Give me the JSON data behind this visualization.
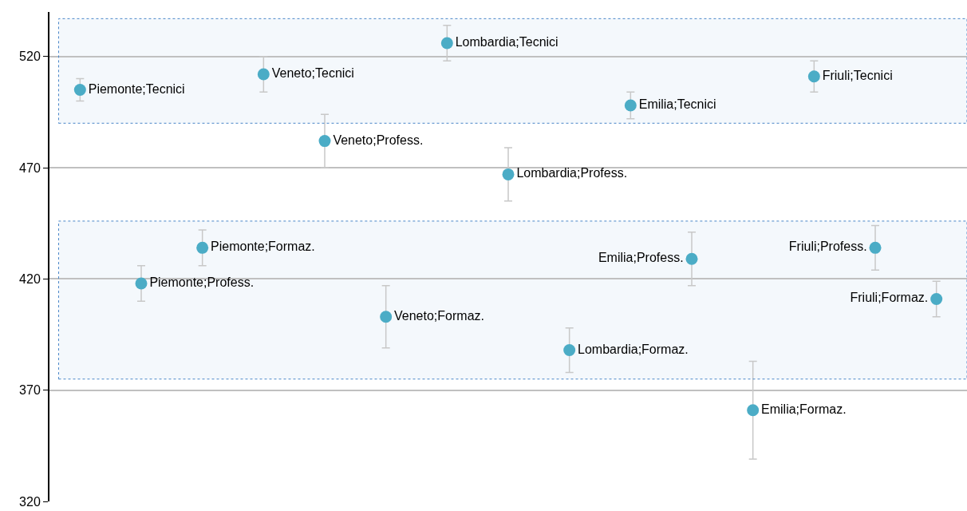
{
  "chart_data": {
    "type": "scatter",
    "categories": [
      null,
      null,
      null,
      null,
      null,
      null,
      null,
      null,
      null,
      null,
      null,
      null,
      null,
      null,
      null
    ],
    "series": [
      {
        "color": "#4bacc6",
        "values": [
          505,
          418,
          434,
          512,
          482,
          403,
          526,
          467,
          388,
          498,
          429,
          361,
          511,
          434,
          411
        ],
        "errors": [
          5,
          8,
          8,
          8,
          12,
          14,
          8,
          12,
          10,
          6,
          12,
          22,
          7,
          10,
          8
        ],
        "value_labels": [
          "Piemonte;Tecnici",
          "Piemonte;Profess.",
          "Piemonte;Formaz.",
          "Veneto;Tecnici",
          "Veneto;Profess.",
          "Veneto;Formaz.",
          "Lombardia;Tecnici",
          "Lombardia;Profess.",
          "Lombardia;Formaz.",
          "Emilia;Tecnici",
          "Emilia;Profess.",
          "Emilia;Formaz.",
          "Friuli;Tecnici",
          "Friuli;Profess.",
          "Friuli;Formaz."
        ]
      }
    ],
    "ylim": [
      320,
      540
    ],
    "yticks": [
      320,
      370,
      420,
      470,
      520
    ],
    "grid": "y",
    "marker": "circle",
    "tick_labels": "y",
    "bands": [
      {
        "axis": "y",
        "from": 490,
        "to": 537,
        "color": "#4a86c8"
      },
      {
        "axis": "y",
        "from": 375,
        "to": 446,
        "color": "#4a86c8"
      }
    ]
  }
}
